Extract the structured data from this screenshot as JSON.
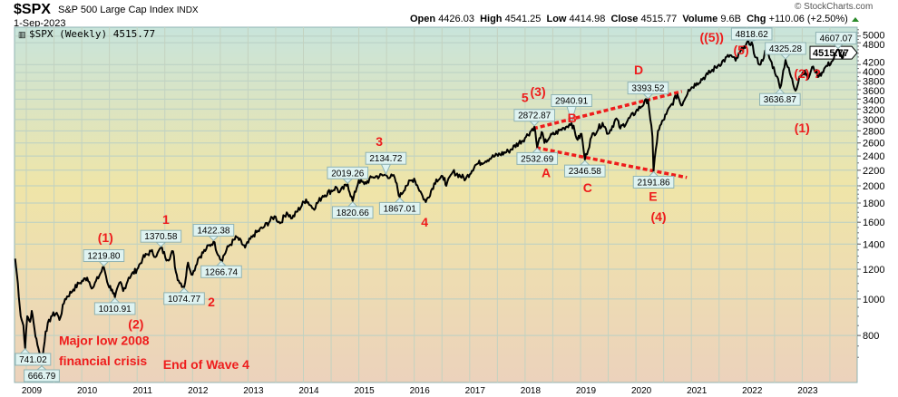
{
  "header": {
    "symbol": "$SPX",
    "name": "S&P 500 Large Cap Index",
    "exchange": "INDX",
    "date": "1-Sep-2023",
    "open_label": "Open",
    "open": "4426.03",
    "high_label": "High",
    "high": "4541.25",
    "low_label": "Low",
    "low": "4414.98",
    "close_label": "Close",
    "close": "4515.77",
    "volume_label": "Volume",
    "volume": "9.6B",
    "chg_label": "Chg",
    "chg": "+110.06 (+2.50%)",
    "copyright": "© StockCharts.com"
  },
  "colors": {
    "line": "#000000",
    "wave": "#ee1c1c",
    "box_fill": "#dff3f1",
    "box_stroke": "#8fb3b3",
    "up": "#2a8a2a"
  },
  "chart_data": {
    "type": "line",
    "title": "$SPX (Weekly) 4515.77",
    "legend_icon": "bar-chart-icon",
    "yscale": "log",
    "ylim": [
      600,
      5280
    ],
    "xlim": [
      2008.7,
      2023.92
    ],
    "yticks": [
      800,
      1000,
      1200,
      1400,
      1600,
      1800,
      2000,
      2200,
      2400,
      2600,
      2800,
      3000,
      3200,
      3400,
      3600,
      3800,
      4000,
      4200,
      4800,
      5000
    ],
    "xticks": [
      "2009",
      "2010",
      "2011",
      "2012",
      "2013",
      "2014",
      "2015",
      "2016",
      "2017",
      "2018",
      "2019",
      "2020",
      "2021",
      "2022",
      "2023"
    ],
    "last_price": "4515.77",
    "series": {
      "name": "$SPX weekly close",
      "points": [
        [
          2008.7,
          1280
        ],
        [
          2008.75,
          1100
        ],
        [
          2008.8,
          900
        ],
        [
          2008.85,
          850
        ],
        [
          2008.88,
          741
        ],
        [
          2008.92,
          900
        ],
        [
          2008.97,
          870
        ],
        [
          2009.0,
          930
        ],
        [
          2009.05,
          830
        ],
        [
          2009.12,
          740
        ],
        [
          2009.18,
          667
        ],
        [
          2009.25,
          820
        ],
        [
          2009.35,
          900
        ],
        [
          2009.45,
          920
        ],
        [
          2009.5,
          880
        ],
        [
          2009.6,
          1000
        ],
        [
          2009.75,
          1060
        ],
        [
          2009.85,
          1100
        ],
        [
          2010.0,
          1140
        ],
        [
          2010.1,
          1070
        ],
        [
          2010.3,
          1217
        ],
        [
          2010.38,
          1090
        ],
        [
          2010.45,
          1060
        ],
        [
          2010.5,
          1011
        ],
        [
          2010.6,
          1110
        ],
        [
          2010.65,
          1050
        ],
        [
          2010.75,
          1140
        ],
        [
          2010.9,
          1200
        ],
        [
          2011.0,
          1280
        ],
        [
          2011.15,
          1340
        ],
        [
          2011.25,
          1300
        ],
        [
          2011.33,
          1370
        ],
        [
          2011.45,
          1270
        ],
        [
          2011.55,
          1340
        ],
        [
          2011.6,
          1180
        ],
        [
          2011.65,
          1120
        ],
        [
          2011.75,
          1075
        ],
        [
          2011.82,
          1250
        ],
        [
          2011.9,
          1160
        ],
        [
          2012.0,
          1280
        ],
        [
          2012.15,
          1360
        ],
        [
          2012.28,
          1422
        ],
        [
          2012.38,
          1300
        ],
        [
          2012.42,
          1267
        ],
        [
          2012.55,
          1380
        ],
        [
          2012.7,
          1460
        ],
        [
          2012.85,
          1370
        ],
        [
          2013.0,
          1480
        ],
        [
          2013.2,
          1560
        ],
        [
          2013.38,
          1660
        ],
        [
          2013.48,
          1590
        ],
        [
          2013.6,
          1700
        ],
        [
          2013.7,
          1640
        ],
        [
          2013.95,
          1840
        ],
        [
          2014.08,
          1740
        ],
        [
          2014.25,
          1880
        ],
        [
          2014.5,
          1980
        ],
        [
          2014.55,
          1920
        ],
        [
          2014.7,
          2019
        ],
        [
          2014.79,
          1821
        ],
        [
          2014.9,
          2070
        ],
        [
          2015.0,
          2020
        ],
        [
          2015.15,
          2110
        ],
        [
          2015.39,
          2135
        ],
        [
          2015.55,
          2100
        ],
        [
          2015.64,
          1867
        ],
        [
          2015.75,
          2000
        ],
        [
          2015.9,
          2090
        ],
        [
          2016.05,
          1880
        ],
        [
          2016.11,
          1810
        ],
        [
          2016.3,
          2080
        ],
        [
          2016.45,
          2100
        ],
        [
          2016.48,
          2000
        ],
        [
          2016.6,
          2180
        ],
        [
          2016.83,
          2085
        ],
        [
          2017.0,
          2270
        ],
        [
          2017.3,
          2380
        ],
        [
          2017.6,
          2470
        ],
        [
          2017.9,
          2680
        ],
        [
          2018.07,
          2873
        ],
        [
          2018.12,
          2533
        ],
        [
          2018.2,
          2780
        ],
        [
          2018.25,
          2600
        ],
        [
          2018.35,
          2700
        ],
        [
          2018.6,
          2850
        ],
        [
          2018.74,
          2941
        ],
        [
          2018.85,
          2650
        ],
        [
          2018.92,
          2750
        ],
        [
          2018.98,
          2347
        ],
        [
          2019.1,
          2700
        ],
        [
          2019.3,
          2940
        ],
        [
          2019.4,
          2750
        ],
        [
          2019.55,
          3020
        ],
        [
          2019.62,
          2840
        ],
        [
          2019.9,
          3150
        ],
        [
          2020.12,
          3394
        ],
        [
          2020.2,
          2700
        ],
        [
          2020.22,
          2192
        ],
        [
          2020.3,
          2800
        ],
        [
          2020.45,
          3100
        ],
        [
          2020.65,
          3500
        ],
        [
          2020.72,
          3270
        ],
        [
          2020.85,
          3600
        ],
        [
          2021.0,
          3750
        ],
        [
          2021.2,
          3960
        ],
        [
          2021.4,
          4200
        ],
        [
          2021.6,
          4450
        ],
        [
          2021.7,
          4300
        ],
        [
          2021.85,
          4700
        ],
        [
          2021.99,
          4819
        ],
        [
          2022.05,
          4400
        ],
        [
          2022.15,
          4200
        ],
        [
          2022.25,
          4600
        ],
        [
          2022.45,
          3900
        ],
        [
          2022.5,
          3637
        ],
        [
          2022.6,
          4325
        ],
        [
          2022.78,
          3580
        ],
        [
          2022.85,
          3900
        ],
        [
          2022.95,
          4050
        ],
        [
          2023.0,
          3840
        ],
        [
          2023.1,
          4150
        ],
        [
          2023.2,
          3900
        ],
        [
          2023.3,
          4100
        ],
        [
          2023.45,
          4300
        ],
        [
          2023.55,
          4607
        ],
        [
          2023.62,
          4370
        ],
        [
          2023.67,
          4516
        ]
      ]
    },
    "price_labels": [
      {
        "text": "741.02",
        "x": 2008.88,
        "y": 741,
        "pos": "below"
      },
      {
        "text": "666.79",
        "x": 2009.18,
        "y": 667,
        "pos": "below"
      },
      {
        "text": "1219.80",
        "x": 2010.3,
        "y": 1217,
        "pos": "above"
      },
      {
        "text": "1010.91",
        "x": 2010.5,
        "y": 1011,
        "pos": "below"
      },
      {
        "text": "1370.58",
        "x": 2011.33,
        "y": 1370,
        "pos": "above"
      },
      {
        "text": "1074.77",
        "x": 2011.75,
        "y": 1075,
        "pos": "below"
      },
      {
        "text": "1422.38",
        "x": 2012.28,
        "y": 1422,
        "pos": "above"
      },
      {
        "text": "1266.74",
        "x": 2012.42,
        "y": 1267,
        "pos": "below"
      },
      {
        "text": "2019.26",
        "x": 2014.7,
        "y": 2019,
        "pos": "above"
      },
      {
        "text": "1820.66",
        "x": 2014.79,
        "y": 1821,
        "pos": "below"
      },
      {
        "text": "2134.72",
        "x": 2015.39,
        "y": 2135,
        "pos": "above"
      },
      {
        "text": "1867.01",
        "x": 2015.64,
        "y": 1867,
        "pos": "below"
      },
      {
        "text": "2872.87",
        "x": 2018.07,
        "y": 2873,
        "pos": "above"
      },
      {
        "text": "2532.69",
        "x": 2018.12,
        "y": 2533,
        "pos": "below"
      },
      {
        "text": "2940.91",
        "x": 2018.74,
        "y": 2941,
        "pos": "above"
      },
      {
        "text": "2346.58",
        "x": 2018.98,
        "y": 2347,
        "pos": "below"
      },
      {
        "text": "3393.52",
        "x": 2020.12,
        "y": 3394,
        "pos": "above"
      },
      {
        "text": "2191.86",
        "x": 2020.22,
        "y": 2192,
        "pos": "below"
      },
      {
        "text": "4818.62",
        "x": 2021.99,
        "y": 4819,
        "pos": "above"
      },
      {
        "text": "4325.28",
        "x": 2022.6,
        "y": 4325,
        "pos": "above"
      },
      {
        "text": "3636.87",
        "x": 2022.5,
        "y": 3637,
        "pos": "below"
      },
      {
        "text": "4607.07",
        "x": 2023.55,
        "y": 4607,
        "pos": "above"
      }
    ],
    "wave_labels": [
      {
        "text": "(1)",
        "x": 2010.33,
        "y": 1410
      },
      {
        "text": "(2)",
        "x": 2010.88,
        "y": 857
      },
      {
        "text": "1",
        "x": 2011.42,
        "y": 1541
      },
      {
        "text": "2",
        "x": 2012.24,
        "y": 982
      },
      {
        "text": "3",
        "x": 2015.27,
        "y": 2430
      },
      {
        "text": "4",
        "x": 2016.09,
        "y": 1603
      },
      {
        "text": "5",
        "x": 2017.9,
        "y": 3245
      },
      {
        "text": "(3)",
        "x": 2017.97,
        "y": 3560
      },
      {
        "text": "A",
        "x": 2018.28,
        "y": 2240
      },
      {
        "text": "B",
        "x": 2018.75,
        "y": 3390
      },
      {
        "text": "C",
        "x": 2019.03,
        "y": 1980
      },
      {
        "text": "D",
        "x": 2019.95,
        "y": 4070
      },
      {
        "text": "E",
        "x": 2020.21,
        "y": 1874
      },
      {
        "text": "(4)",
        "x": 2020.31,
        "y": 1713
      },
      {
        "text": "((5))",
        "x": 2021.27,
        "y": 5195
      },
      {
        "text": "(5)",
        "x": 2021.8,
        "y": 5000
      },
      {
        "text": "(1)",
        "x": 2022.9,
        "y": 2856
      },
      {
        "text": "(2) ?",
        "x": 2023.65,
        "y": 5110
      }
    ],
    "notes": [
      {
        "text": "Major low 2008",
        "x": 2009.49,
        "y": 802
      },
      {
        "text": "financial crisis",
        "x": 2009.49,
        "y": 709
      },
      {
        "text": "End of Wave 4",
        "x": 2011.37,
        "y": 671
      }
    ],
    "trendlines": [
      {
        "name": "upper-triangle-line",
        "from": [
          2018.05,
          2839
        ],
        "to": [
          2020.73,
          3564
        ]
      },
      {
        "name": "lower-triangle-line",
        "from": [
          2018.1,
          2526
        ],
        "to": [
          2020.82,
          2104
        ]
      }
    ]
  }
}
